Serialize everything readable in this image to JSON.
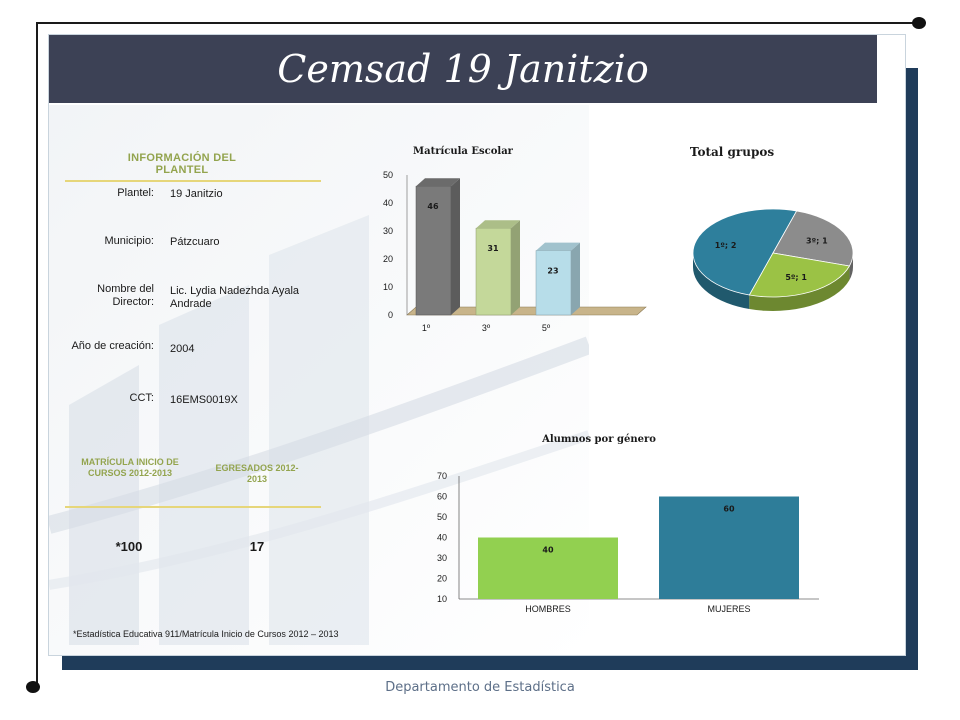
{
  "header": {
    "title": "Cemsad 19 Janitzio"
  },
  "info": {
    "heading": "INFORMACIÓN DEL PLANTEL",
    "rows": [
      {
        "label": "Plantel:",
        "value": "19 Janitzio"
      },
      {
        "label": "Municipio:",
        "value": "Pátzcuaro"
      },
      {
        "label": "Nombre del Director:",
        "value": "Lic. Lydia Nadezhda Ayala Andrade"
      },
      {
        "label": "Año de creación:",
        "value": "2004"
      },
      {
        "label": "CCT:",
        "value": "16EMS0019X"
      }
    ]
  },
  "stats": {
    "matricula_heading": "MATRÍCULA INICIO DE CURSOS 2012-2013",
    "egresados_heading": "EGRESADOS 2012-2013",
    "matricula_value": "*100",
    "egresados_value": "17"
  },
  "footnote": "*Estadística Educativa 911/Matrícula Inicio de Cursos 2012 – 2013",
  "footer": "Departamento de Estadística",
  "colors": {
    "title_bar": "#3c4155",
    "accent_green": "#93a44e",
    "shadow_panel": "#1f3c5a",
    "bar_gray": "#7a7a7a",
    "bar_light_green": "#c4d89a",
    "bar_light_blue": "#b7dde9",
    "pie_teal": "#2e7f9c",
    "pie_gray": "#8c8c8c",
    "pie_green": "#9bc245",
    "gender_green": "#92d050",
    "gender_teal": "#2e7d99"
  },
  "chart_data": [
    {
      "type": "bar",
      "title": "Matrícula Escolar",
      "categories": [
        "1º",
        "3º",
        "5º"
      ],
      "values": [
        46,
        31,
        23
      ],
      "ylim": [
        0,
        50
      ],
      "yticks": [
        0,
        10,
        20,
        30,
        40,
        50
      ],
      "grid": false
    },
    {
      "type": "pie",
      "title": "Total grupos",
      "slices": [
        {
          "label": "1º; 2",
          "name": "1º",
          "value": 2
        },
        {
          "label": "3º; 1",
          "name": "3º",
          "value": 1
        },
        {
          "label": "5º; 1",
          "name": "5º",
          "value": 1
        }
      ]
    },
    {
      "type": "bar",
      "title": "Alumnos por género",
      "categories": [
        "HOMBRES",
        "MUJERES"
      ],
      "values": [
        40,
        60
      ],
      "ylim": [
        10,
        70
      ],
      "yticks": [
        10,
        20,
        30,
        40,
        50,
        60,
        70
      ],
      "grid": false
    }
  ]
}
